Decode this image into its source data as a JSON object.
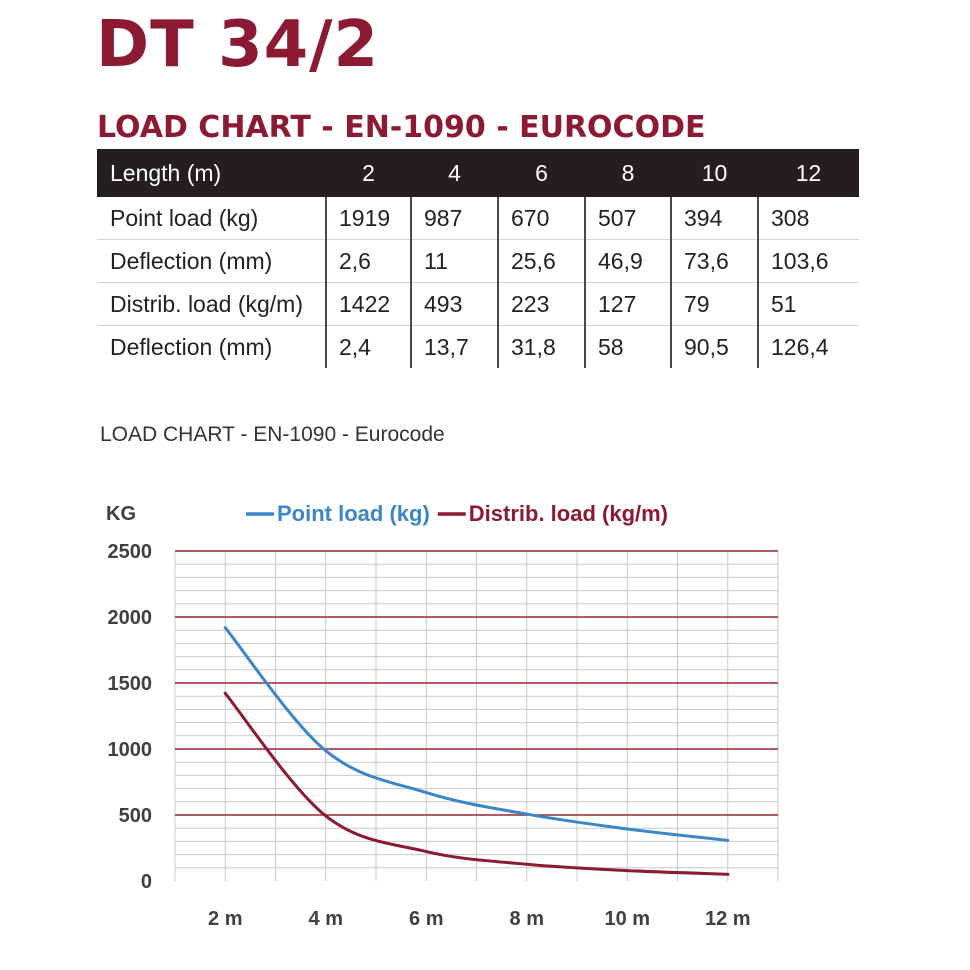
{
  "title": "DT 34/2",
  "subtitle": "LOAD CHART - EN-1090 - EUROCODE",
  "table": {
    "header": [
      "Length (m)",
      "2",
      "4",
      "6",
      "8",
      "10",
      "12"
    ],
    "rows": [
      [
        "Point load (kg)",
        "1919",
        "987",
        "670",
        "507",
        "394",
        "308"
      ],
      [
        "Deflection (mm)",
        "2,6",
        "11",
        "25,6",
        "46,9",
        "73,6",
        "103,6"
      ],
      [
        "Distrib. load (kg/m)",
        "1422",
        "493",
        "223",
        "127",
        "79",
        "51"
      ],
      [
        "Deflection (mm)",
        "2,4",
        "13,7",
        "31,8",
        "58",
        "90,5",
        "126,4"
      ]
    ]
  },
  "chart_caption": "LOAD CHART - EN-1090 - Eurocode",
  "chart_data": {
    "type": "line",
    "ylabel": "KG",
    "x": [
      2,
      4,
      6,
      8,
      10,
      12
    ],
    "x_tick_labels": [
      "2 m",
      "4 m",
      "6 m",
      "8 m",
      "10 m",
      "12 m"
    ],
    "y_ticks": [
      0,
      500,
      1000,
      1500,
      2000,
      2500
    ],
    "ylim": [
      0,
      2500
    ],
    "xlim": [
      1,
      13
    ],
    "grid": true,
    "legend_position": "top",
    "series": [
      {
        "name": "Point load (kg)",
        "color": "#3a86c8",
        "values": [
          1919,
          987,
          670,
          507,
          394,
          308
        ]
      },
      {
        "name": "Distrib. load (kg/m)",
        "color": "#8b1a32",
        "values": [
          1422,
          493,
          223,
          127,
          79,
          51
        ]
      }
    ]
  },
  "colors": {
    "brand": "#8b1a32",
    "header_bg": "#231f20",
    "grid_major": "#9b2335",
    "grid_minor": "#c8c8c8"
  }
}
